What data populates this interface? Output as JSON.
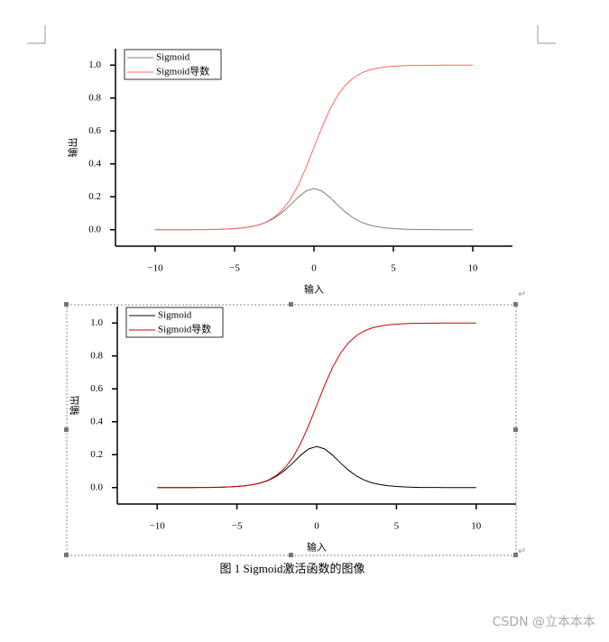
{
  "chart_data": [
    {
      "type": "line",
      "xlabel": "输入",
      "ylabel": "输出",
      "x": [
        -10,
        -9.5,
        -9,
        -8.5,
        -8,
        -7.5,
        -7,
        -6.5,
        -6,
        -5.5,
        -5,
        -4.5,
        -4,
        -3.5,
        -3,
        -2.5,
        -2,
        -1.5,
        -1,
        -0.5,
        0,
        0.5,
        1,
        1.5,
        2,
        2.5,
        3,
        3.5,
        4,
        4.5,
        5,
        5.5,
        6,
        6.5,
        7,
        7.5,
        8,
        8.5,
        9,
        9.5,
        10
      ],
      "series": [
        {
          "name": "Sigmoid",
          "color": "#808080",
          "values": [
            0,
            0,
            0,
            0,
            0,
            0.001,
            0.001,
            0.001,
            0.002,
            0.004,
            0.007,
            0.011,
            0.018,
            0.028,
            0.045,
            0.07,
            0.105,
            0.149,
            0.197,
            0.235,
            0.25,
            0.235,
            0.197,
            0.149,
            0.105,
            0.07,
            0.045,
            0.028,
            0.018,
            0.011,
            0.007,
            0.004,
            0.002,
            0.001,
            0.001,
            0.001,
            0,
            0,
            0,
            0,
            0
          ]
        },
        {
          "name": "Sigmoid导数",
          "color": "#ff6666",
          "values": [
            0,
            0,
            0,
            0,
            0,
            0.001,
            0.001,
            0.002,
            0.002,
            0.004,
            0.007,
            0.011,
            0.018,
            0.029,
            0.047,
            0.076,
            0.119,
            0.182,
            0.269,
            0.378,
            0.5,
            0.622,
            0.731,
            0.818,
            0.881,
            0.924,
            0.953,
            0.971,
            0.982,
            0.989,
            0.993,
            0.996,
            0.998,
            0.998,
            0.999,
            0.999,
            1,
            1,
            1,
            1,
            1
          ]
        }
      ],
      "xlim": [
        -12.5,
        12.5
      ],
      "ylim": [
        -0.1,
        1.1
      ],
      "xticks": [
        {
          "value": -10,
          "label": "−10"
        },
        {
          "value": -5,
          "label": "−5"
        },
        0,
        5,
        10
      ],
      "yticks": [
        {
          "value": 0,
          "label": "0.0"
        },
        0.2,
        0.4,
        0.6,
        0.8,
        {
          "value": 1,
          "label": "1.0"
        }
      ],
      "legend": "upper left"
    },
    {
      "type": "line",
      "xlabel": "输入",
      "ylabel": "输出",
      "x": [
        -10,
        -9.5,
        -9,
        -8.5,
        -8,
        -7.5,
        -7,
        -6.5,
        -6,
        -5.5,
        -5,
        -4.5,
        -4,
        -3.5,
        -3,
        -2.5,
        -2,
        -1.5,
        -1,
        -0.5,
        0,
        0.5,
        1,
        1.5,
        2,
        2.5,
        3,
        3.5,
        4,
        4.5,
        5,
        5.5,
        6,
        6.5,
        7,
        7.5,
        8,
        8.5,
        9,
        9.5,
        10
      ],
      "series": [
        {
          "name": "Sigmoid",
          "color": "#000000",
          "values": [
            0,
            0,
            0,
            0,
            0,
            0.001,
            0.001,
            0.001,
            0.002,
            0.004,
            0.007,
            0.011,
            0.018,
            0.028,
            0.045,
            0.07,
            0.105,
            0.149,
            0.197,
            0.235,
            0.25,
            0.235,
            0.197,
            0.149,
            0.105,
            0.07,
            0.045,
            0.028,
            0.018,
            0.011,
            0.007,
            0.004,
            0.002,
            0.001,
            0.001,
            0.001,
            0,
            0,
            0,
            0,
            0
          ]
        },
        {
          "name": "Sigmoid导数",
          "color": "#cc0000",
          "values": [
            0,
            0,
            0,
            0,
            0,
            0.001,
            0.001,
            0.002,
            0.002,
            0.004,
            0.007,
            0.011,
            0.018,
            0.029,
            0.047,
            0.076,
            0.119,
            0.182,
            0.269,
            0.378,
            0.5,
            0.622,
            0.731,
            0.818,
            0.881,
            0.924,
            0.953,
            0.971,
            0.982,
            0.989,
            0.993,
            0.996,
            0.998,
            0.998,
            0.999,
            0.999,
            1,
            1,
            1,
            1,
            1
          ]
        }
      ],
      "xlim": [
        -12.5,
        12.5
      ],
      "ylim": [
        -0.1,
        1.1
      ],
      "xticks": [
        {
          "value": -10,
          "label": "−10"
        },
        {
          "value": -5,
          "label": "−5"
        },
        0,
        5,
        10
      ],
      "yticks": [
        {
          "value": 0,
          "label": "0.0"
        },
        0.2,
        0.4,
        0.6,
        0.8,
        {
          "value": 1,
          "label": "1.0"
        }
      ],
      "legend": "upper left"
    }
  ],
  "caption": "图 1 Sigmoid激活函数的图像",
  "watermark": "CSDN @立本本本"
}
